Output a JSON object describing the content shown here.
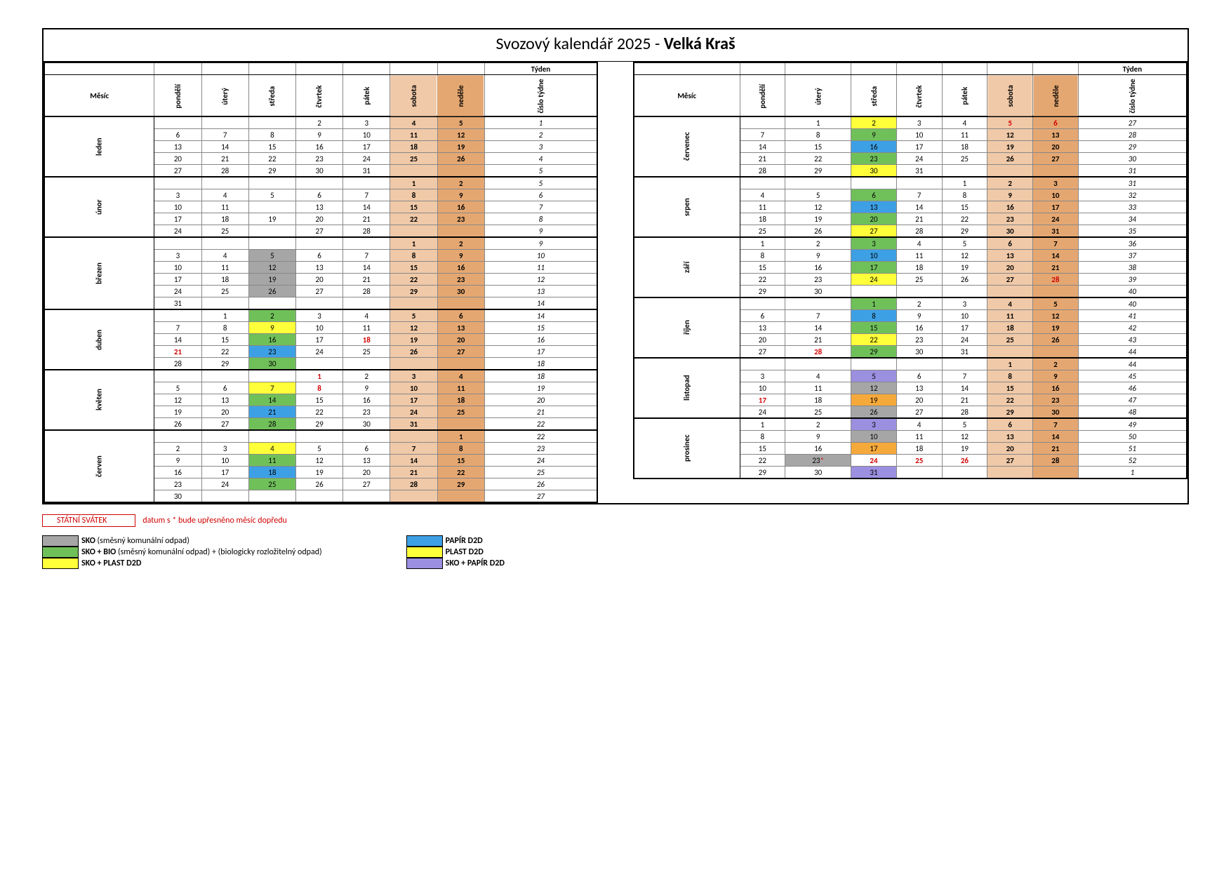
{
  "title_prefix": "Svozový kalendář 2025 - ",
  "title_bold": "Velká Kraš",
  "labels": {
    "mesic": "Měsíc",
    "tyden": "Týden",
    "days": [
      "pondělí",
      "úterý",
      "středa",
      "čtvrtek",
      "pátek",
      "sobota",
      "neděle",
      "číslo týdne"
    ]
  },
  "colors": {
    "sat": "#f0c9a8",
    "sun": "#e5a771",
    "sko": "#a6a6a6",
    "bio": "#70c05a",
    "plast": "#ffff3a",
    "papir": "#3da0e5",
    "skopap": "#9b8fe0",
    "orange": "#f6a93b"
  },
  "legend_left": [
    {
      "c": "sko",
      "b": "SKO",
      "t": " (směsný komunální odpad)"
    },
    {
      "c": "bio",
      "b": "SKO + BIO",
      "t": " (směsný komunální odpad) + (biologicky rozložitelný odpad)"
    },
    {
      "c": "plast",
      "b": "SKO + PLAST D2D",
      "t": ""
    }
  ],
  "legend_right": [
    {
      "c": "papir",
      "b": "PAPÍR D2D",
      "t": ""
    },
    {
      "c": "plast",
      "b": "PLAST D2D",
      "t": ""
    },
    {
      "c": "skopap",
      "b": "SKO + PAPÍR D2D",
      "t": ""
    }
  ],
  "statni": "STÁTNÍ SVÁTEK",
  "note": "datum s *   bude upřesněno měsíc dopředu",
  "left": [
    {
      "name": "leden",
      "rows": [
        {
          "d": [
            "",
            "",
            "",
            "2",
            "3",
            "4",
            "5"
          ],
          "w": "1"
        },
        {
          "d": [
            "6",
            "7",
            "8",
            "9",
            "10",
            "11",
            "12"
          ],
          "w": "2"
        },
        {
          "d": [
            "13",
            "14",
            "15",
            "16",
            "17",
            "18",
            "19"
          ],
          "w": "3"
        },
        {
          "d": [
            "20",
            "21",
            "22",
            "23",
            "24",
            "25",
            "26"
          ],
          "w": "4"
        },
        {
          "d": [
            "27",
            "28",
            "29",
            "30",
            "31",
            "",
            ""
          ],
          "w": "5"
        }
      ]
    },
    {
      "name": "únor",
      "rows": [
        {
          "d": [
            "",
            "",
            "",
            "",
            "",
            "1",
            "2"
          ],
          "w": "5"
        },
        {
          "d": [
            "3",
            "4",
            "5",
            "6",
            "7",
            "8",
            "9"
          ],
          "w": "6"
        },
        {
          "d": [
            "10",
            "11",
            "",
            "13",
            "14",
            "15",
            "16"
          ],
          "w": "7"
        },
        {
          "d": [
            "17",
            "18",
            "19",
            "20",
            "21",
            "22",
            "23"
          ],
          "w": "8"
        },
        {
          "d": [
            "24",
            "25",
            "",
            "27",
            "28",
            "",
            ""
          ],
          "w": "9"
        }
      ]
    },
    {
      "name": "březen",
      "rows": [
        {
          "d": [
            "",
            "",
            "",
            "",
            "",
            "1",
            "2"
          ],
          "w": "9"
        },
        {
          "d": [
            "3",
            "4",
            "5",
            "6",
            "7",
            "8",
            "9"
          ],
          "w": "10",
          "c": {
            "2": "sko"
          }
        },
        {
          "d": [
            "10",
            "11",
            "12",
            "13",
            "14",
            "15",
            "16"
          ],
          "w": "11",
          "c": {
            "2": "sko"
          }
        },
        {
          "d": [
            "17",
            "18",
            "19",
            "20",
            "21",
            "22",
            "23"
          ],
          "w": "12",
          "c": {
            "2": "sko"
          }
        },
        {
          "d": [
            "24",
            "25",
            "26",
            "27",
            "28",
            "29",
            "30"
          ],
          "w": "13",
          "c": {
            "2": "sko"
          }
        },
        {
          "d": [
            "31",
            "",
            "",
            "",
            "",
            "",
            ""
          ],
          "w": "14"
        }
      ]
    },
    {
      "name": "duben",
      "rows": [
        {
          "d": [
            "",
            "1",
            "2",
            "3",
            "4",
            "5",
            "6"
          ],
          "w": "14",
          "c": {
            "2": "bio"
          }
        },
        {
          "d": [
            "7",
            "8",
            "9",
            "10",
            "11",
            "12",
            "13"
          ],
          "w": "15",
          "c": {
            "2": "plast"
          }
        },
        {
          "d": [
            "14",
            "15",
            "16",
            "17",
            "18",
            "19",
            "20"
          ],
          "w": "16",
          "c": {
            "2": "bio"
          },
          "h": [
            4
          ]
        },
        {
          "d": [
            "21",
            "22",
            "23",
            "24",
            "25",
            "26",
            "27"
          ],
          "w": "17",
          "c": {
            "2": "papir"
          },
          "h": [
            0
          ]
        },
        {
          "d": [
            "28",
            "29",
            "30",
            "",
            "",
            "",
            ""
          ],
          "w": "18",
          "c": {
            "2": "bio"
          }
        }
      ]
    },
    {
      "name": "květen",
      "rows": [
        {
          "d": [
            "",
            "",
            "",
            "1",
            "2",
            "3",
            "4"
          ],
          "w": "18",
          "h": [
            3
          ]
        },
        {
          "d": [
            "5",
            "6",
            "7",
            "8",
            "9",
            "10",
            "11"
          ],
          "w": "19",
          "c": {
            "2": "plast"
          },
          "h": [
            3
          ]
        },
        {
          "d": [
            "12",
            "13",
            "14",
            "15",
            "16",
            "17",
            "18"
          ],
          "w": "20",
          "c": {
            "2": "bio"
          }
        },
        {
          "d": [
            "19",
            "20",
            "21",
            "22",
            "23",
            "24",
            "25"
          ],
          "w": "21",
          "c": {
            "2": "papir"
          }
        },
        {
          "d": [
            "26",
            "27",
            "28",
            "29",
            "30",
            "31",
            ""
          ],
          "w": "22",
          "c": {
            "2": "bio"
          }
        }
      ]
    },
    {
      "name": "červen",
      "rows": [
        {
          "d": [
            "",
            "",
            "",
            "",
            "",
            "",
            "1"
          ],
          "w": "22"
        },
        {
          "d": [
            "2",
            "3",
            "4",
            "5",
            "6",
            "7",
            "8"
          ],
          "w": "23",
          "c": {
            "2": "plast"
          }
        },
        {
          "d": [
            "9",
            "10",
            "11",
            "12",
            "13",
            "14",
            "15"
          ],
          "w": "24",
          "c": {
            "2": "bio"
          }
        },
        {
          "d": [
            "16",
            "17",
            "18",
            "19",
            "20",
            "21",
            "22"
          ],
          "w": "25",
          "c": {
            "2": "papir"
          }
        },
        {
          "d": [
            "23",
            "24",
            "25",
            "26",
            "27",
            "28",
            "29"
          ],
          "w": "26",
          "c": {
            "2": "bio"
          }
        },
        {
          "d": [
            "30",
            "",
            "",
            "",
            "",
            "",
            ""
          ],
          "w": "27"
        }
      ]
    }
  ],
  "right": [
    {
      "name": "červenec",
      "rows": [
        {
          "d": [
            "",
            "1",
            "2",
            "3",
            "4",
            "5",
            "6"
          ],
          "w": "27",
          "c": {
            "2": "plast"
          },
          "h": [
            5,
            6
          ]
        },
        {
          "d": [
            "7",
            "8",
            "9",
            "10",
            "11",
            "12",
            "13"
          ],
          "w": "28",
          "c": {
            "2": "bio"
          }
        },
        {
          "d": [
            "14",
            "15",
            "16",
            "17",
            "18",
            "19",
            "20"
          ],
          "w": "29",
          "c": {
            "2": "papir"
          }
        },
        {
          "d": [
            "21",
            "22",
            "23",
            "24",
            "25",
            "26",
            "27"
          ],
          "w": "30",
          "c": {
            "2": "bio"
          }
        },
        {
          "d": [
            "28",
            "29",
            "30",
            "31",
            "",
            "",
            ""
          ],
          "w": "31",
          "c": {
            "2": "plast"
          }
        }
      ]
    },
    {
      "name": "srpen",
      "rows": [
        {
          "d": [
            "",
            "",
            "",
            "",
            "1",
            "2",
            "3"
          ],
          "w": "31"
        },
        {
          "d": [
            "4",
            "5",
            "6",
            "7",
            "8",
            "9",
            "10"
          ],
          "w": "32",
          "c": {
            "2": "bio"
          }
        },
        {
          "d": [
            "11",
            "12",
            "13",
            "14",
            "15",
            "16",
            "17"
          ],
          "w": "33",
          "c": {
            "2": "papir"
          }
        },
        {
          "d": [
            "18",
            "19",
            "20",
            "21",
            "22",
            "23",
            "24"
          ],
          "w": "34",
          "c": {
            "2": "bio"
          }
        },
        {
          "d": [
            "25",
            "26",
            "27",
            "28",
            "29",
            "30",
            "31"
          ],
          "w": "35",
          "c": {
            "2": "plast"
          }
        }
      ]
    },
    {
      "name": "září",
      "rows": [
        {
          "d": [
            "1",
            "2",
            "3",
            "4",
            "5",
            "6",
            "7"
          ],
          "w": "36",
          "c": {
            "2": "bio"
          }
        },
        {
          "d": [
            "8",
            "9",
            "10",
            "11",
            "12",
            "13",
            "14"
          ],
          "w": "37",
          "c": {
            "2": "papir"
          }
        },
        {
          "d": [
            "15",
            "16",
            "17",
            "18",
            "19",
            "20",
            "21"
          ],
          "w": "38",
          "c": {
            "2": "bio"
          }
        },
        {
          "d": [
            "22",
            "23",
            "24",
            "25",
            "26",
            "27",
            "28"
          ],
          "w": "39",
          "c": {
            "2": "plast"
          },
          "h": [
            6
          ]
        },
        {
          "d": [
            "29",
            "30",
            "",
            "",
            "",
            "",
            ""
          ],
          "w": "40"
        }
      ]
    },
    {
      "name": "říjen",
      "rows": [
        {
          "d": [
            "",
            "",
            "1",
            "2",
            "3",
            "4",
            "5"
          ],
          "w": "40",
          "c": {
            "2": "bio"
          }
        },
        {
          "d": [
            "6",
            "7",
            "8",
            "9",
            "10",
            "11",
            "12"
          ],
          "w": "41",
          "c": {
            "2": "papir"
          }
        },
        {
          "d": [
            "13",
            "14",
            "15",
            "16",
            "17",
            "18",
            "19"
          ],
          "w": "42",
          "c": {
            "2": "bio"
          }
        },
        {
          "d": [
            "20",
            "21",
            "22",
            "23",
            "24",
            "25",
            "26"
          ],
          "w": "43",
          "c": {
            "2": "plast"
          }
        },
        {
          "d": [
            "27",
            "28",
            "29",
            "30",
            "31",
            "",
            ""
          ],
          "w": "44",
          "c": {
            "2": "bio"
          },
          "h": [
            1
          ]
        }
      ]
    },
    {
      "name": "listopad",
      "rows": [
        {
          "d": [
            "",
            "",
            "",
            "",
            "",
            "1",
            "2"
          ],
          "w": "44"
        },
        {
          "d": [
            "3",
            "4",
            "5",
            "6",
            "7",
            "8",
            "9"
          ],
          "w": "45",
          "c": {
            "2": "skopap"
          }
        },
        {
          "d": [
            "10",
            "11",
            "12",
            "13",
            "14",
            "15",
            "16"
          ],
          "w": "46",
          "c": {
            "2": "sko"
          }
        },
        {
          "d": [
            "17",
            "18",
            "19",
            "20",
            "21",
            "22",
            "23"
          ],
          "w": "47",
          "c": {
            "2": "orange"
          },
          "h": [
            0
          ]
        },
        {
          "d": [
            "24",
            "25",
            "26",
            "27",
            "28",
            "29",
            "30"
          ],
          "w": "48",
          "c": {
            "2": "sko"
          }
        }
      ]
    },
    {
      "name": "prosinec",
      "rows": [
        {
          "d": [
            "1",
            "2",
            "3",
            "4",
            "5",
            "6",
            "7"
          ],
          "w": "49",
          "c": {
            "2": "skopap"
          }
        },
        {
          "d": [
            "8",
            "9",
            "10",
            "11",
            "12",
            "13",
            "14"
          ],
          "w": "50",
          "c": {
            "2": "sko"
          }
        },
        {
          "d": [
            "15",
            "16",
            "17",
            "18",
            "19",
            "20",
            "21"
          ],
          "w": "51",
          "c": {
            "2": "orange"
          }
        },
        {
          "d": [
            "22",
            "23*",
            "24",
            "25",
            "26",
            "27",
            "28"
          ],
          "w": "52",
          "c": {
            "1": "sko"
          },
          "h": [
            2,
            3,
            4
          ],
          "star": [
            1
          ]
        },
        {
          "d": [
            "29",
            "30",
            "31",
            "",
            "",
            "",
            ""
          ],
          "w": "1",
          "c": {
            "2": "skopap"
          }
        }
      ]
    }
  ]
}
